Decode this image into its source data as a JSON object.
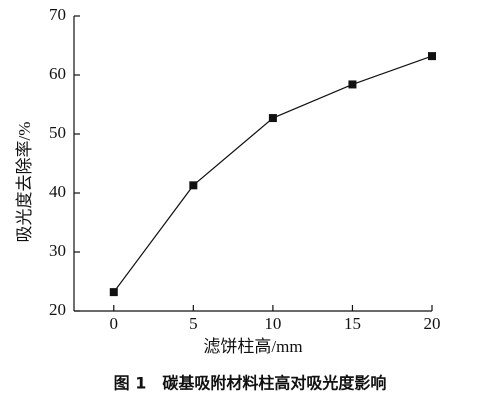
{
  "chart_data": {
    "type": "line",
    "x": [
      0,
      5,
      10,
      15,
      20
    ],
    "values": [
      23.2,
      41.3,
      52.7,
      58.4,
      63.2
    ],
    "color": "#111111",
    "xlim": [
      -2.5,
      20
    ],
    "xticks": [
      0,
      5,
      10,
      15,
      20
    ],
    "ylim": [
      20,
      70
    ],
    "yticks": [
      20,
      30,
      40,
      50,
      60,
      70
    ],
    "x_label": "滤饼柱高/mm",
    "y_label": "吸光度去除率/%",
    "caption": "图 1　碳基吸附材料柱高对吸光度影响"
  }
}
